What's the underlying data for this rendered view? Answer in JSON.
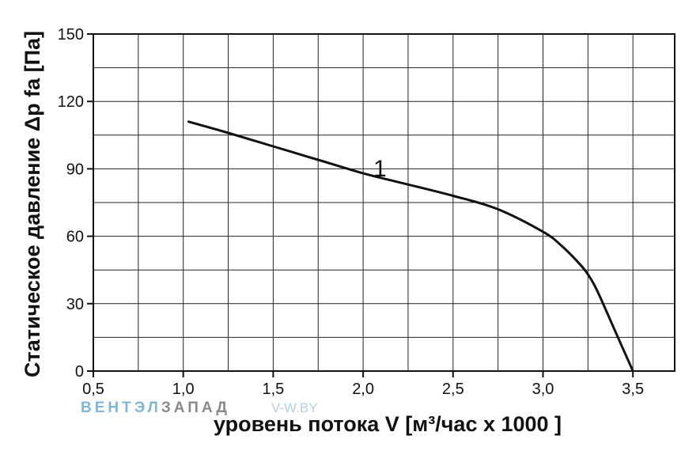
{
  "chart_data": {
    "type": "line",
    "xlabel": "уровень потока  V [м³/час x 1000 ]",
    "ylabel": "Статическое давление  Δp fa [Па]",
    "xlim": [
      0.5,
      3.75
    ],
    "ylim": [
      0,
      150
    ],
    "x_ticks": [
      "0,5",
      "1,0",
      "1,5",
      "2,0",
      "2,5",
      "3,0",
      "3,5"
    ],
    "x_tick_values": [
      0.5,
      1.0,
      1.5,
      2.0,
      2.5,
      3.0,
      3.5
    ],
    "y_ticks": [
      "0",
      "30",
      "60",
      "90",
      "120",
      "150"
    ],
    "y_tick_values": [
      0,
      30,
      60,
      90,
      120,
      150
    ],
    "grid": true,
    "series": [
      {
        "name": "1",
        "x": [
          1.03,
          1.25,
          1.5,
          1.75,
          2.0,
          2.2,
          2.5,
          2.75,
          3.0,
          3.1,
          3.2,
          3.25,
          3.3,
          3.4,
          3.5
        ],
        "y": [
          111,
          106,
          100,
          94,
          88,
          84,
          78,
          72,
          62,
          56,
          48,
          43,
          36,
          18,
          0
        ]
      }
    ],
    "annotation": "1"
  },
  "watermark": {
    "part1": "ВЕНТЭЛ",
    "part2": "ЗАПАД",
    "part3": "V-W.BY",
    "colors": {
      "part1": "#7fb6dc",
      "part2": "#8a8a8a",
      "part3": "#b8cfe0"
    }
  },
  "colors": {
    "grid": "#222222",
    "curve": "#111111"
  }
}
